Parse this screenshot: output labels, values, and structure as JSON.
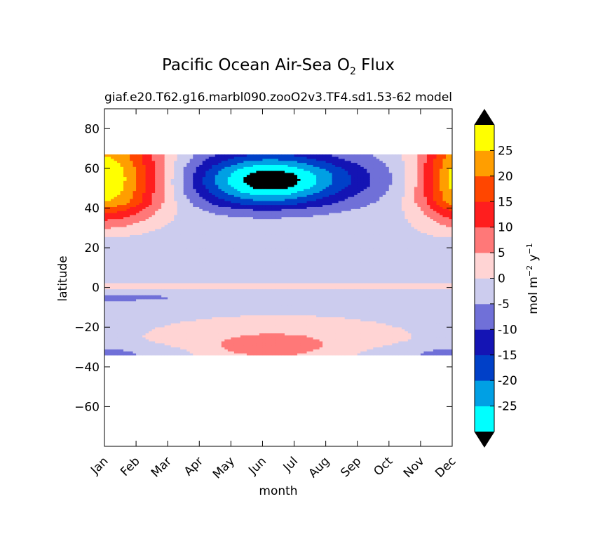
{
  "figure": {
    "title_main": "Pacific Ocean Air-Sea O",
    "title_sub": "2",
    "title_tail": " Flux",
    "subtitle_left": "giaf.e20.T62.g16.marbl090.zooO2v3.TF4.sd1.53-62",
    "subtitle_right": "model"
  },
  "chart_data": {
    "type": "heatmap",
    "subtype": "filled-contour",
    "title": "Pacific Ocean Air-Sea O2 Flux",
    "xlabel": "month",
    "ylabel": "latitude",
    "x_ticks": [
      "Jan",
      "Feb",
      "Mar",
      "Apr",
      "May",
      "Jun",
      "Jul",
      "Aug",
      "Sep",
      "Oct",
      "Nov",
      "Dec"
    ],
    "y_ticks": [
      80,
      60,
      40,
      20,
      0,
      -20,
      -40,
      -60
    ],
    "y_tick_labels": [
      "80",
      "60",
      "40",
      "20",
      "0",
      "−20",
      "−40",
      "−60"
    ],
    "ylim": [
      -80,
      90
    ],
    "data_lat_range": [
      -34,
      67
    ],
    "colorbar": {
      "label": "mol m⁻² y⁻¹",
      "levels": [
        -30,
        -25,
        -20,
        -15,
        -10,
        -5,
        0,
        5,
        10,
        15,
        20,
        25,
        30
      ],
      "tick_labels": [
        "25",
        "20",
        "15",
        "10",
        "5",
        "0",
        "-5",
        "-10",
        "-15",
        "-20",
        "-25"
      ],
      "colors": [
        "#00ffff",
        "#00a0e4",
        "#0040c8",
        "#1414b4",
        "#7070d8",
        "#ccccee",
        "#ffd4d4",
        "#ff7878",
        "#ff1e1e",
        "#ff4600",
        "#ff9e00",
        "#ffff00"
      ],
      "extend": "both",
      "under_color": "#000000",
      "over_color": "#000000"
    },
    "field_description_regions": [
      {
        "level": "negative weak (-5..0)",
        "color": "#ccccee",
        "where": "tropics and mid-latitudes most of year"
      },
      {
        "level": "positive weak (0..5)",
        "color": "#ffd4d4",
        "where": "equator band, south subtropics mid-year, northern latitudes in winter"
      },
      {
        "level": "strong uptake (-30..-10)",
        "color": "#1414b4",
        "where": "45-67N, May-Sep"
      },
      {
        "level": "strong outgassing (10..30)",
        "color": "#ffff00",
        "where": "35-67N, Dec-Feb"
      }
    ]
  }
}
